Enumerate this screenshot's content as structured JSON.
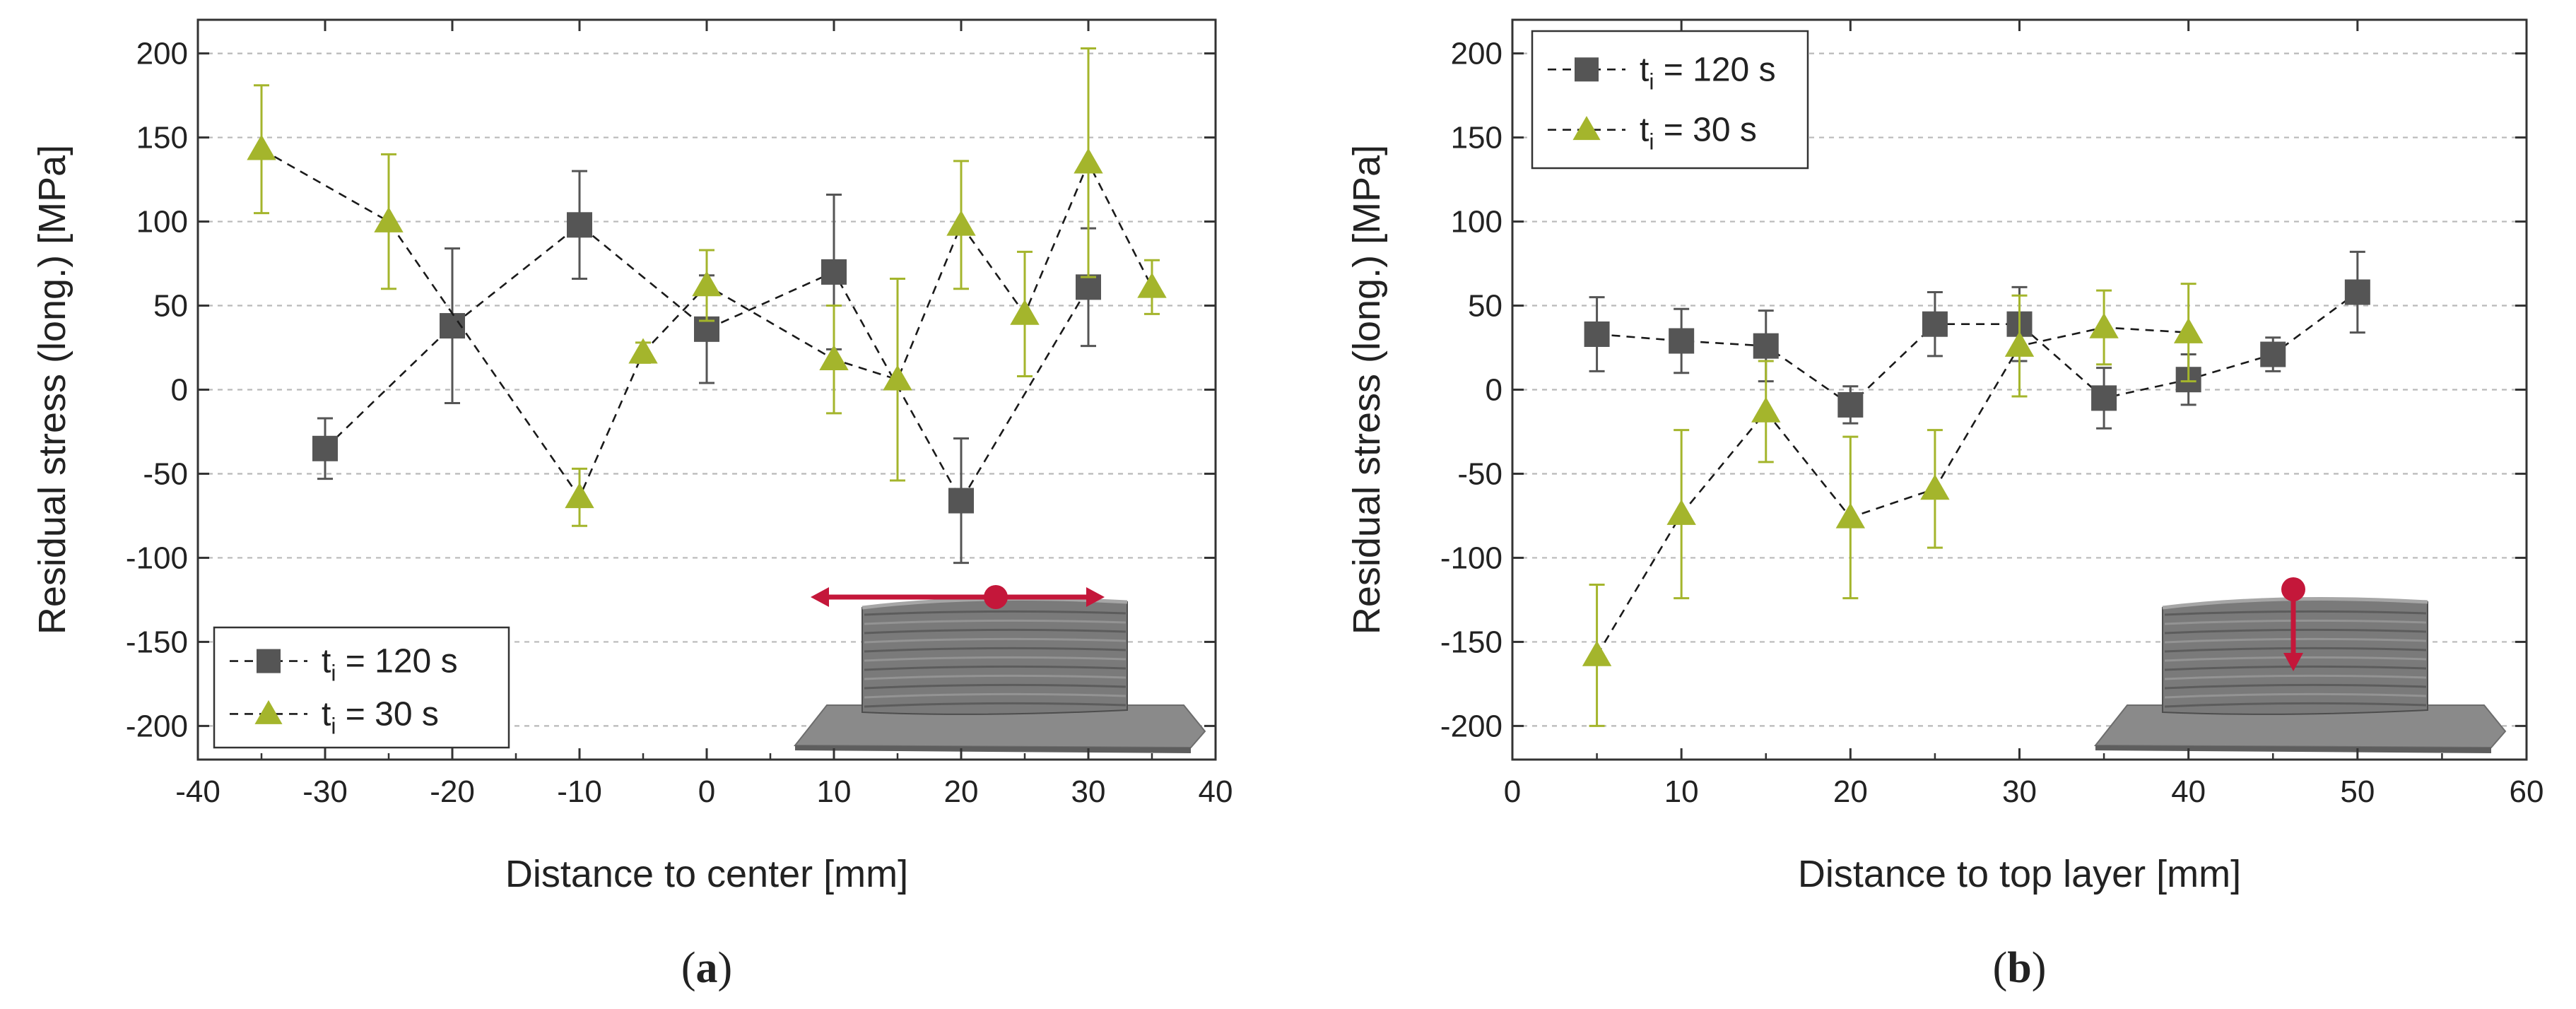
{
  "chart_data": [
    {
      "type": "line",
      "panel_label": "(a)",
      "panel_letter": "a",
      "xlabel": "Distance to center [mm]",
      "ylabel": "Residual stress (long.) [MPa]",
      "xlim": [
        -40,
        40
      ],
      "ylim": [
        -220,
        220
      ],
      "x_ticks": [
        "-40",
        "-30",
        "-20",
        "-10",
        "0",
        "10",
        "20",
        "30",
        "40"
      ],
      "y_ticks": [
        "200",
        "150",
        "100",
        "50",
        "0",
        "-50",
        "-100",
        "-150",
        "-200"
      ],
      "grid": true,
      "legend_position": "bottom-left",
      "inset": "specimen photo with horizontal double-headed red arrow",
      "series": [
        {
          "name": "t_i = 120 s",
          "label_main": "t",
          "label_sub": "i",
          "label_rest": " = 120 s",
          "color": "#555555",
          "marker": "square",
          "x": [
            -30,
            -20,
            -10,
            0,
            10,
            20,
            30
          ],
          "y": [
            -35,
            38,
            98,
            36,
            70,
            -66,
            61
          ],
          "err": [
            18,
            46,
            32,
            32,
            46,
            37,
            35
          ]
        },
        {
          "name": "t_i = 30 s",
          "label_main": "t",
          "label_sub": "i",
          "label_rest": " = 30 s",
          "color": "#a4b52c",
          "marker": "triangle",
          "x": [
            -35,
            -25,
            -10,
            -5,
            0,
            10,
            15,
            20,
            25,
            30,
            35
          ],
          "y": [
            143,
            100,
            -64,
            22,
            62,
            18,
            6,
            98,
            45,
            135,
            61
          ],
          "err": [
            38,
            40,
            17,
            6,
            21,
            32,
            60,
            38,
            37,
            68,
            16
          ]
        }
      ]
    },
    {
      "type": "line",
      "panel_label": "(b)",
      "panel_letter": "b",
      "xlabel": "Distance to top layer [mm]",
      "ylabel": "Residual stress (long.) [MPa]",
      "xlim": [
        0,
        60
      ],
      "ylim": [
        -220,
        220
      ],
      "x_ticks": [
        "0",
        "10",
        "20",
        "30",
        "40",
        "50",
        "60"
      ],
      "y_ticks": [
        "200",
        "150",
        "100",
        "50",
        "0",
        "-50",
        "-100",
        "-150",
        "-200"
      ],
      "grid": true,
      "legend_position": "top-left",
      "inset": "specimen photo with vertical downward red arrow",
      "series": [
        {
          "name": "t_i = 120 s",
          "label_main": "t",
          "label_sub": "i",
          "label_rest": " = 120 s",
          "color": "#555555",
          "marker": "square",
          "x": [
            5,
            10,
            15,
            20,
            25,
            30,
            35,
            40,
            45,
            50
          ],
          "y": [
            33,
            29,
            26,
            -9,
            39,
            39,
            -5,
            6,
            21,
            58
          ],
          "err": [
            22,
            19,
            21,
            11,
            19,
            22,
            18,
            15,
            10,
            24
          ]
        },
        {
          "name": "t_i = 30 s",
          "label_main": "t",
          "label_sub": "i",
          "label_rest": " = 30 s",
          "color": "#a4b52c",
          "marker": "triangle",
          "x": [
            5,
            10,
            15,
            20,
            25,
            30,
            35,
            40
          ],
          "y": [
            -158,
            -74,
            -13,
            -76,
            -59,
            26,
            37,
            34
          ],
          "err": [
            42,
            50,
            30,
            48,
            35,
            30,
            22,
            29
          ]
        }
      ]
    }
  ]
}
